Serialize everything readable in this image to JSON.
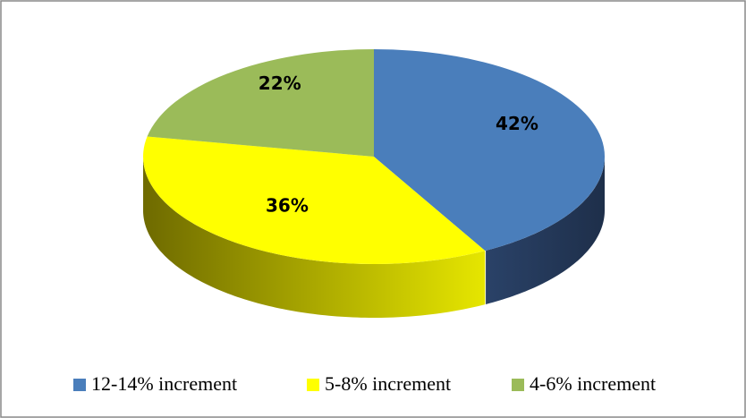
{
  "chart_data": {
    "type": "pie3d",
    "categories": [
      "12-14% increment",
      "5-8% increment",
      "4-6% increment"
    ],
    "values": [
      42,
      36,
      22
    ],
    "value_labels": [
      "42%",
      "36%",
      "22%"
    ],
    "colors": [
      "#4a7ebb",
      "#ffff00",
      "#9bbb59"
    ],
    "side_colors": [
      [
        "#1e2f4a",
        "#2a4268"
      ],
      [
        "#e6e600",
        "#6e6a00"
      ],
      [
        "#6e8a3c",
        "#55702c"
      ]
    ],
    "legend": "bottom"
  }
}
